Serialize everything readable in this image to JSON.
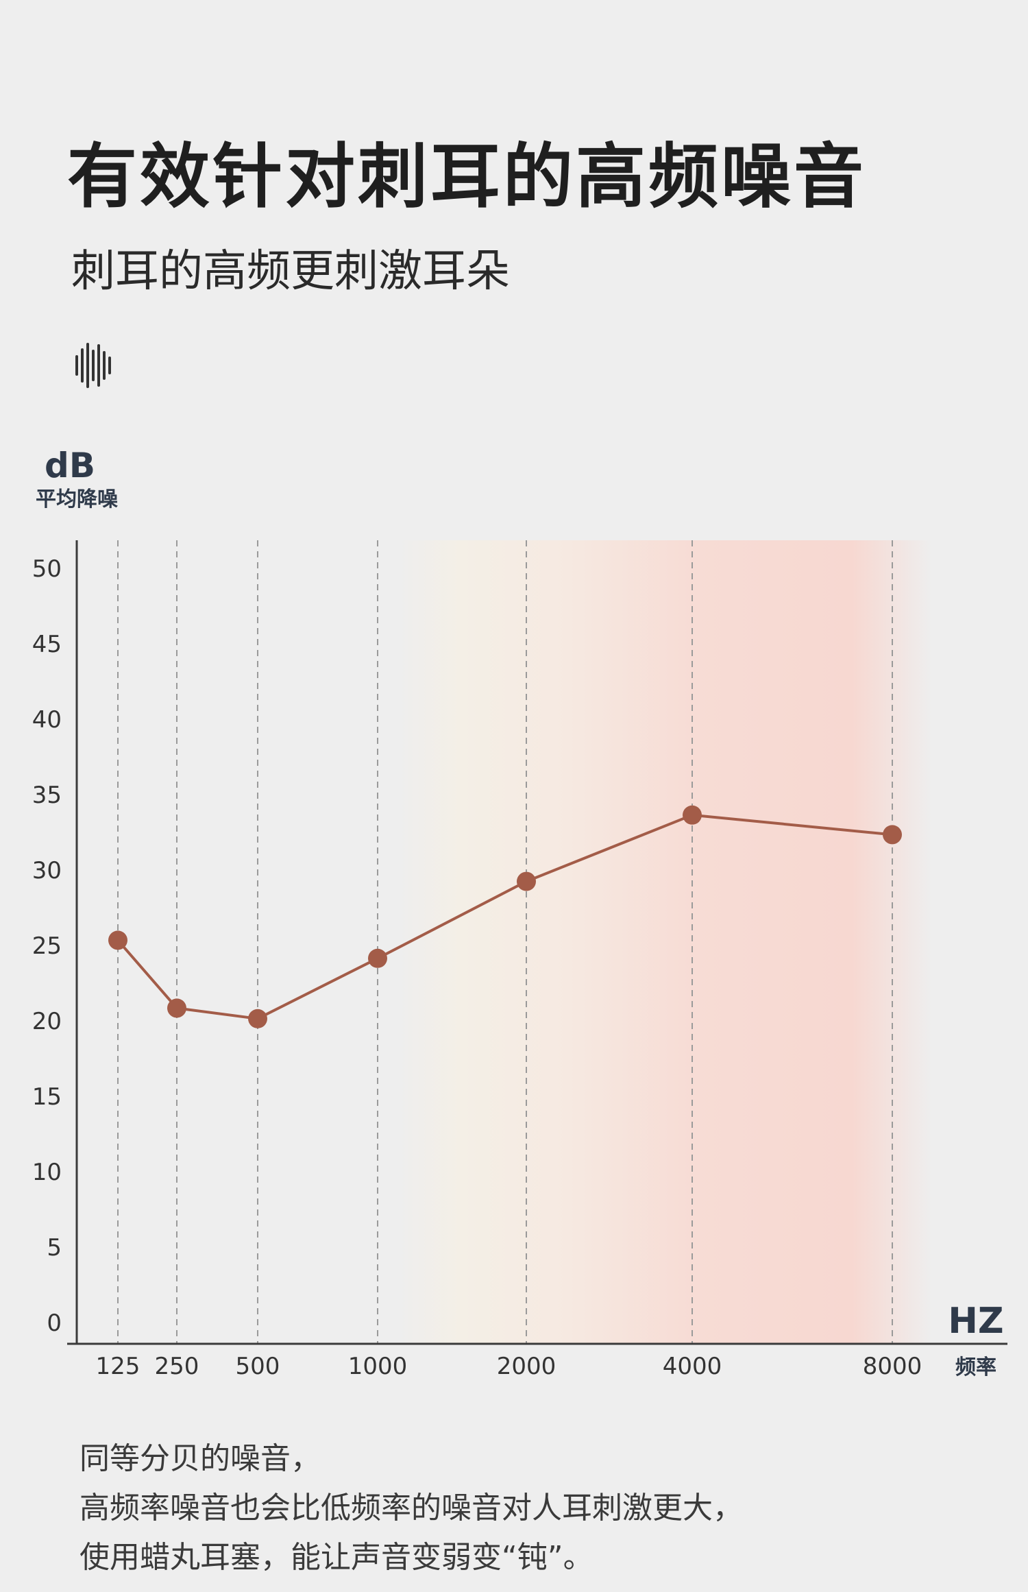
{
  "header": {
    "title": "有效针对刺耳的高频噪音",
    "subtitle": "刺耳的高频更刺激耳朵",
    "icon": "sound-wave-icon"
  },
  "chart_data": {
    "type": "line",
    "title": "",
    "ylabel": "dB",
    "ylabel_sub": "平均降噪",
    "xlabel": "HZ",
    "xlabel_sub": "频率",
    "categories": [
      "125",
      "250",
      "500",
      "1000",
      "2000",
      "4000",
      "8000"
    ],
    "values": [
      25.3,
      20.8,
      20.1,
      24.1,
      29.2,
      33.6,
      32.3
    ],
    "ylim": [
      0,
      50
    ],
    "yticks": [
      0,
      5,
      10,
      15,
      20,
      25,
      30,
      35,
      40,
      45,
      50
    ],
    "highlight_band": [
      "1000",
      "8000"
    ],
    "grid": "vertical dashed",
    "colors": {
      "line": "#a35c48",
      "marker": "#a35c48",
      "axis": "#3a3a3a",
      "grid": "#9a9a9a",
      "band_start": "#f3efe6",
      "band_peak": "#f7d9d2"
    }
  },
  "footer": {
    "lines": [
      "同等分贝的噪音，",
      "高频率噪音也会比低频率的噪音对人耳刺激更大，",
      "使用蜡丸耳塞，能让声音变弱变“钝”。"
    ]
  }
}
